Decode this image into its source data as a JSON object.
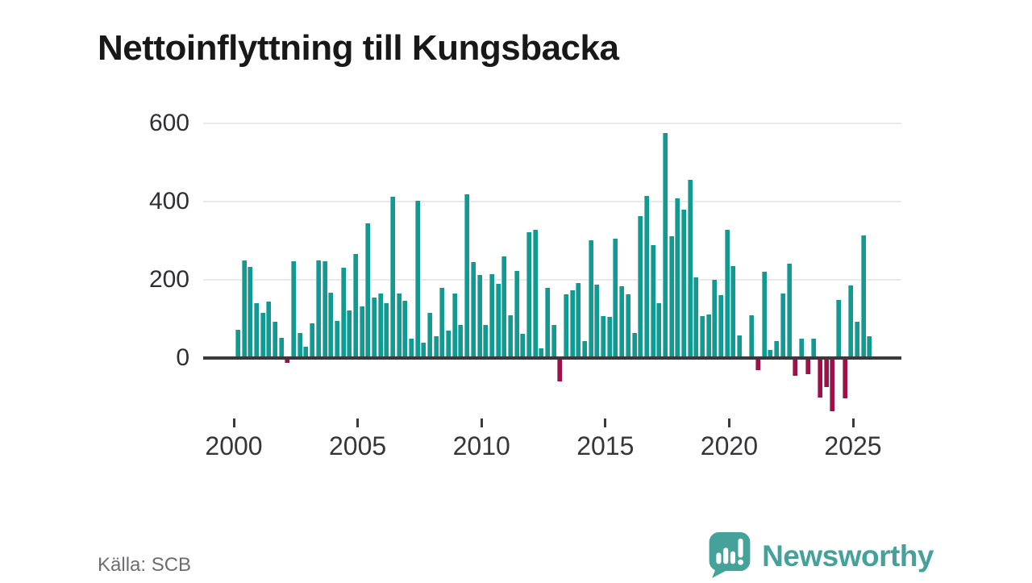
{
  "title": "Nettoinflyttning till Kungsbacka",
  "source": "Källa: SCB",
  "brand": {
    "name": "Newsworthy",
    "icon": "newsworthy-speech-bubble-chart-icon"
  },
  "colors": {
    "positive_bar": "#119a91",
    "negative_bar": "#9e1148",
    "axis": "#3a3a3e",
    "grid": "#e9e9e9",
    "brand_teal": "#45a29b",
    "title_text": "#181818",
    "source_text": "#6c6c75"
  },
  "chart_data": {
    "type": "bar",
    "title": "Nettoinflyttning till Kungsbacka",
    "xlabel": "",
    "ylabel": "",
    "frequency": "quarterly",
    "start_period": "2000Q1",
    "end_period": "2025Q3",
    "x_tick_labels": [
      "2000",
      "2005",
      "2010",
      "2015",
      "2020",
      "2025"
    ],
    "y_tick_values": [
      600,
      400,
      200,
      0
    ],
    "ylim": [
      -160,
      625
    ],
    "grid": true,
    "legend": "none",
    "values": [
      72,
      250,
      232,
      140,
      115,
      145,
      93,
      51,
      -13,
      248,
      64,
      28,
      89,
      250,
      248,
      167,
      95,
      230,
      121,
      265,
      131,
      345,
      155,
      165,
      140,
      411,
      165,
      146,
      50,
      401,
      40,
      115,
      55,
      180,
      70,
      165,
      85,
      418,
      245,
      212,
      85,
      215,
      190,
      260,
      110,
      222,
      62,
      322,
      327,
      25,
      180,
      85,
      -60,
      163,
      172,
      192,
      43,
      300,
      187,
      108,
      105,
      305,
      183,
      163,
      64,
      363,
      413,
      288,
      140,
      575,
      310,
      408,
      380,
      455,
      207,
      108,
      111,
      200,
      160,
      327,
      235,
      57,
      0,
      110,
      -30,
      220,
      20,
      44,
      165,
      240,
      -46,
      49,
      -41,
      50,
      -100,
      -74,
      -135,
      148,
      -103,
      185,
      93,
      313,
      55
    ]
  }
}
